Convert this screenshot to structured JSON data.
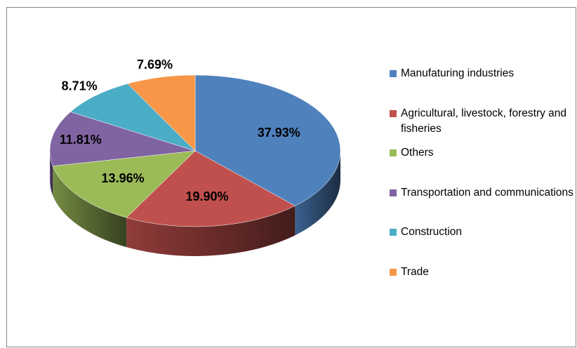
{
  "chart_data": {
    "type": "pie",
    "categories": [
      "Manufaturing industries",
      "Agricultural, livestock, forestry and fisheries",
      "Others",
      "Transportation and communications",
      "Construction",
      "Trade"
    ],
    "values": [
      37.93,
      19.9,
      13.96,
      11.81,
      8.71,
      7.69
    ],
    "value_labels": [
      "37.93%",
      "19.90%",
      "13.96%",
      "11.81%",
      "8.71%",
      "7.69%"
    ],
    "colors": [
      "#4F81BD",
      "#C0504D",
      "#9BBB59",
      "#8064A2",
      "#4BACC6",
      "#F79646"
    ],
    "legend": "right"
  }
}
